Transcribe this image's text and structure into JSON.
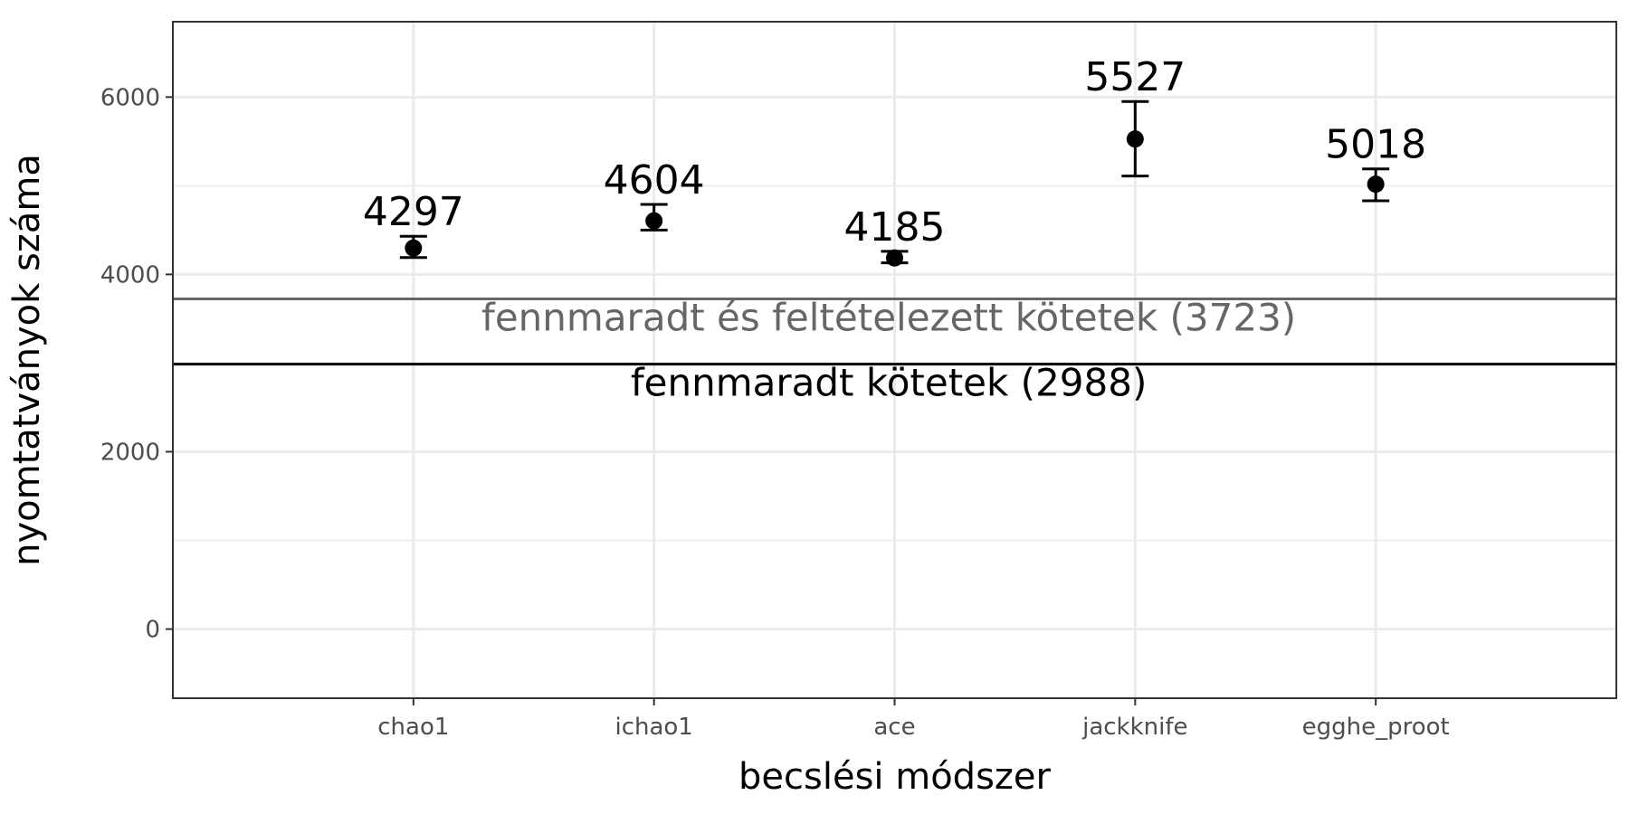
{
  "chart_data": {
    "type": "scatter",
    "xlabel": "becslési módszer",
    "ylabel": "nyomtatványok száma",
    "categories": [
      "chao1",
      "ichao1",
      "ace",
      "jackknife",
      "egghe_proot"
    ],
    "values": [
      4297,
      4604,
      4185,
      5527,
      5018
    ],
    "value_labels": [
      "4297",
      "4604",
      "4185",
      "5527",
      "5018"
    ],
    "error_low": [
      4190,
      4500,
      4130,
      5110,
      4830
    ],
    "error_high": [
      4430,
      4790,
      4260,
      5950,
      5190
    ],
    "ylim": [
      -780,
      6850
    ],
    "yticks": [
      0,
      2000,
      4000,
      6000
    ],
    "ytick_labels": [
      "0",
      "2000",
      "4000",
      "6000"
    ],
    "grid": true,
    "reference_lines": [
      {
        "value": 3723,
        "label": "fennmaradt és feltételezett kötetek (3723)",
        "color": "#666666"
      },
      {
        "value": 2988,
        "label": "fennmaradt kötetek (2988)",
        "color": "#000000"
      }
    ],
    "point_color": "#000000"
  }
}
